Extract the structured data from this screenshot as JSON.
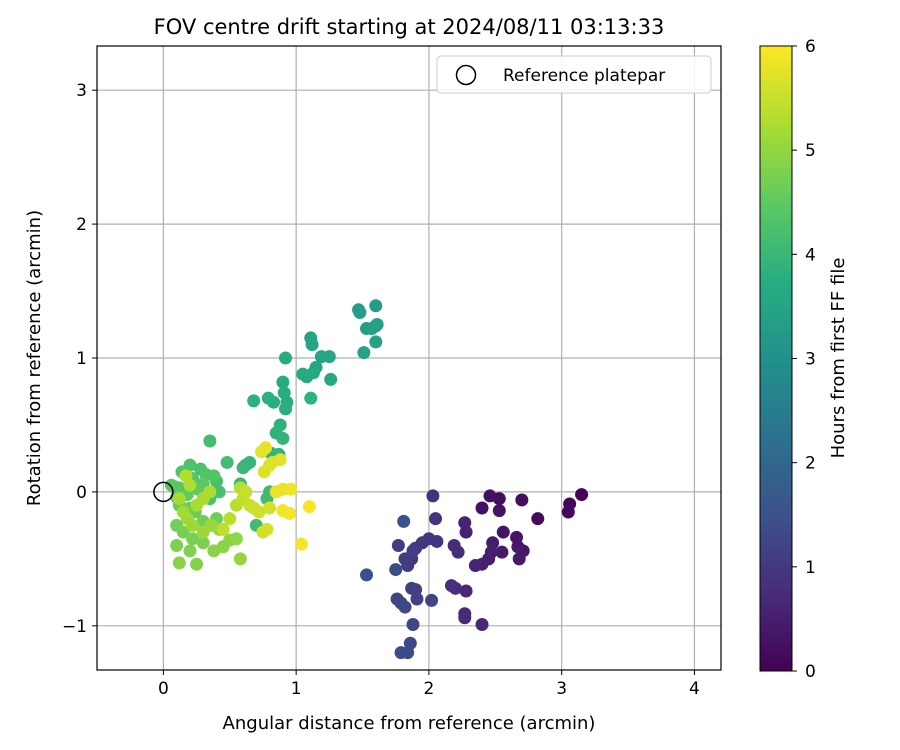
{
  "chart_data": {
    "type": "scatter",
    "title": "FOV centre drift starting at 2024/08/11 03:13:33",
    "xlabel": "Angular distance from reference (arcmin)",
    "ylabel": "Rotation from reference (arcmin)",
    "xlim": [
      -0.5,
      4.2
    ],
    "ylim": [
      -1.33,
      3.33
    ],
    "xticks": [
      0,
      1,
      2,
      3,
      4
    ],
    "yticks": [
      -1,
      0,
      1,
      2,
      3
    ],
    "xtick_labels": [
      "0",
      "1",
      "2",
      "3",
      "4"
    ],
    "ytick_labels": [
      "−1",
      "0",
      "1",
      "2",
      "3"
    ],
    "grid": true,
    "legend": {
      "placement": "top-right",
      "entries": [
        {
          "label": "Reference platepar",
          "marker": "open-circle"
        }
      ]
    },
    "colorbar": {
      "label": "Hours from first FF file",
      "range": [
        0,
        6
      ],
      "ticks": [
        0,
        1,
        2,
        3,
        4,
        5,
        6
      ],
      "colormap": "viridis"
    },
    "reference_point": {
      "x": 0,
      "y": 0
    },
    "series": [
      {
        "color_by": "hours",
        "points": [
          [
            3.15,
            -0.02,
            0.05
          ],
          [
            3.06,
            -0.09,
            0.08
          ],
          [
            3.05,
            -0.15,
            0.12
          ],
          [
            2.82,
            -0.2,
            0.15
          ],
          [
            2.7,
            -0.06,
            0.2
          ],
          [
            2.53,
            -0.05,
            0.22
          ],
          [
            2.46,
            -0.03,
            0.25
          ],
          [
            2.4,
            -0.12,
            0.28
          ],
          [
            2.53,
            -0.14,
            0.3
          ],
          [
            2.56,
            -0.3,
            0.33
          ],
          [
            2.66,
            -0.34,
            0.35
          ],
          [
            2.67,
            -0.41,
            0.38
          ],
          [
            2.71,
            -0.44,
            0.4
          ],
          [
            2.68,
            -0.5,
            0.42
          ],
          [
            2.55,
            -0.45,
            0.45
          ],
          [
            2.48,
            -0.38,
            0.48
          ],
          [
            2.47,
            -0.45,
            0.5
          ],
          [
            2.45,
            -0.5,
            0.52
          ],
          [
            2.4,
            -0.54,
            0.55
          ],
          [
            2.28,
            -0.3,
            0.58
          ],
          [
            2.27,
            -0.23,
            0.6
          ],
          [
            2.35,
            -0.55,
            0.62
          ],
          [
            2.4,
            -0.99,
            0.65
          ],
          [
            2.28,
            -0.74,
            0.68
          ],
          [
            2.27,
            -0.91,
            0.7
          ],
          [
            2.27,
            -0.94,
            0.72
          ],
          [
            2.19,
            -0.4,
            0.75
          ],
          [
            2.22,
            -0.45,
            0.78
          ],
          [
            2.17,
            -0.7,
            0.8
          ],
          [
            2.2,
            -0.72,
            0.82
          ],
          [
            2.03,
            -0.03,
            0.85
          ],
          [
            2.05,
            -0.2,
            0.88
          ],
          [
            2.06,
            -0.37,
            0.9
          ],
          [
            2.0,
            -0.35,
            0.92
          ],
          [
            1.95,
            -0.38,
            0.95
          ],
          [
            1.9,
            -0.42,
            0.98
          ],
          [
            1.87,
            -0.5,
            1.0
          ],
          [
            1.84,
            -0.55,
            1.02
          ],
          [
            1.82,
            -0.5,
            1.05
          ],
          [
            1.77,
            -0.4,
            1.08
          ],
          [
            1.88,
            -0.44,
            1.1
          ],
          [
            1.87,
            -0.72,
            1.12
          ],
          [
            1.9,
            -0.73,
            1.15
          ],
          [
            1.91,
            -0.8,
            1.18
          ],
          [
            2.02,
            -0.81,
            1.2
          ],
          [
            1.76,
            -0.8,
            1.22
          ],
          [
            1.79,
            -0.83,
            1.25
          ],
          [
            1.82,
            -0.86,
            1.28
          ],
          [
            1.88,
            -0.99,
            1.3
          ],
          [
            1.86,
            -1.13,
            1.32
          ],
          [
            1.84,
            -1.2,
            1.35
          ],
          [
            1.79,
            -1.2,
            1.38
          ],
          [
            1.75,
            -0.58,
            1.4
          ],
          [
            1.53,
            -0.62,
            1.45
          ],
          [
            1.81,
            -0.22,
            1.5
          ],
          [
            1.6,
            1.39,
            3.3
          ],
          [
            1.47,
            1.36,
            3.32
          ],
          [
            1.48,
            1.34,
            3.34
          ],
          [
            1.53,
            1.22,
            3.36
          ],
          [
            1.57,
            1.22,
            3.38
          ],
          [
            1.6,
            1.24,
            3.4
          ],
          [
            1.61,
            1.25,
            3.42
          ],
          [
            1.6,
            1.12,
            3.44
          ],
          [
            1.51,
            1.04,
            3.46
          ],
          [
            1.11,
            1.15,
            3.48
          ],
          [
            1.12,
            1.1,
            3.5
          ],
          [
            1.19,
            1.01,
            3.52
          ],
          [
            1.25,
            1.01,
            3.54
          ],
          [
            1.26,
            0.84,
            3.56
          ],
          [
            1.15,
            0.93,
            3.58
          ],
          [
            1.13,
            0.89,
            3.6
          ],
          [
            1.05,
            0.88,
            3.62
          ],
          [
            1.08,
            0.86,
            3.64
          ],
          [
            0.92,
            1.0,
            3.66
          ],
          [
            0.9,
            0.82,
            3.68
          ],
          [
            0.91,
            0.74,
            3.7
          ],
          [
            0.93,
            0.67,
            3.72
          ],
          [
            0.92,
            0.62,
            3.74
          ],
          [
            0.83,
            0.67,
            3.76
          ],
          [
            0.79,
            0.7,
            3.78
          ],
          [
            0.68,
            0.68,
            3.8
          ],
          [
            1.11,
            0.7,
            3.82
          ],
          [
            0.88,
            0.5,
            3.84
          ],
          [
            0.85,
            0.44,
            3.86
          ],
          [
            0.9,
            0.4,
            3.88
          ],
          [
            0.81,
            0.29,
            3.9
          ],
          [
            0.87,
            0.28,
            3.92
          ],
          [
            0.62,
            0.2,
            3.95
          ],
          [
            0.65,
            0.22,
            3.98
          ],
          [
            0.6,
            0.18,
            4.0
          ],
          [
            0.58,
            0.06,
            4.02
          ],
          [
            0.8,
            0.0,
            4.05
          ],
          [
            0.78,
            -0.05,
            4.08
          ],
          [
            0.7,
            -0.25,
            4.1
          ],
          [
            0.48,
            0.22,
            4.12
          ],
          [
            0.35,
            0.38,
            4.15
          ],
          [
            0.4,
            0.08,
            4.18
          ],
          [
            0.42,
            0.0,
            4.2
          ],
          [
            0.35,
            -0.05,
            4.22
          ],
          [
            0.28,
            0.17,
            4.25
          ],
          [
            0.2,
            0.2,
            4.28
          ],
          [
            0.14,
            0.15,
            4.3
          ],
          [
            0.32,
            0.13,
            4.32
          ],
          [
            0.38,
            0.12,
            4.35
          ],
          [
            0.22,
            0.1,
            4.38
          ],
          [
            0.12,
            0.03,
            4.4
          ],
          [
            0.08,
            0.04,
            4.42
          ],
          [
            0.06,
            0.05,
            4.45
          ],
          [
            0.3,
            0.06,
            4.48
          ],
          [
            0.26,
            0.02,
            4.5
          ],
          [
            0.18,
            -0.02,
            4.52
          ],
          [
            0.1,
            -0.04,
            4.55
          ],
          [
            0.12,
            -0.1,
            4.58
          ],
          [
            0.2,
            -0.12,
            4.6
          ],
          [
            0.24,
            -0.15,
            4.62
          ],
          [
            0.4,
            -0.2,
            4.65
          ],
          [
            0.3,
            -0.22,
            4.68
          ],
          [
            0.1,
            -0.25,
            4.7
          ],
          [
            0.15,
            -0.3,
            4.72
          ],
          [
            0.22,
            -0.35,
            4.75
          ],
          [
            0.3,
            -0.38,
            4.78
          ],
          [
            0.1,
            -0.4,
            4.8
          ],
          [
            0.2,
            -0.44,
            4.82
          ],
          [
            0.25,
            -0.54,
            4.85
          ],
          [
            0.12,
            -0.53,
            4.88
          ],
          [
            0.38,
            -0.44,
            4.9
          ],
          [
            0.45,
            -0.41,
            4.92
          ],
          [
            0.5,
            -0.36,
            4.95
          ],
          [
            0.55,
            -0.35,
            4.98
          ],
          [
            0.58,
            -0.5,
            5.0
          ],
          [
            0.42,
            -0.28,
            5.02
          ],
          [
            0.36,
            -0.25,
            5.05
          ],
          [
            0.3,
            -0.3,
            5.08
          ],
          [
            0.22,
            -0.25,
            5.1
          ],
          [
            0.18,
            -0.2,
            5.12
          ],
          [
            0.15,
            -0.15,
            5.15
          ],
          [
            0.12,
            -0.05,
            5.18
          ],
          [
            0.25,
            -0.1,
            5.2
          ],
          [
            0.3,
            -0.05,
            5.22
          ],
          [
            0.35,
            0.0,
            5.25
          ],
          [
            0.2,
            0.05,
            5.28
          ],
          [
            0.17,
            0.12,
            5.3
          ],
          [
            0.58,
            0.03,
            5.32
          ],
          [
            0.55,
            -0.1,
            5.35
          ],
          [
            0.5,
            -0.2,
            5.38
          ],
          [
            0.45,
            -0.28,
            5.4
          ],
          [
            0.6,
            -0.05,
            5.45
          ],
          [
            0.62,
            0.0,
            5.48
          ],
          [
            0.65,
            -0.1,
            5.5
          ],
          [
            0.68,
            -0.12,
            5.52
          ],
          [
            0.72,
            -0.15,
            5.55
          ],
          [
            0.75,
            -0.3,
            5.58
          ],
          [
            0.78,
            -0.28,
            5.6
          ],
          [
            0.8,
            -0.12,
            5.62
          ],
          [
            0.76,
            0.15,
            5.65
          ],
          [
            0.8,
            0.2,
            5.68
          ],
          [
            0.82,
            0.22,
            5.7
          ],
          [
            0.88,
            0.24,
            5.72
          ],
          [
            0.74,
            0.3,
            5.75
          ],
          [
            0.77,
            0.33,
            5.78
          ],
          [
            0.85,
            0.0,
            5.8
          ],
          [
            0.9,
            0.02,
            5.82
          ],
          [
            0.96,
            0.02,
            5.85
          ],
          [
            0.9,
            -0.14,
            5.88
          ],
          [
            0.95,
            -0.16,
            5.9
          ],
          [
            1.04,
            -0.39,
            5.92
          ],
          [
            1.1,
            -0.11,
            5.95
          ]
        ]
      }
    ]
  }
}
